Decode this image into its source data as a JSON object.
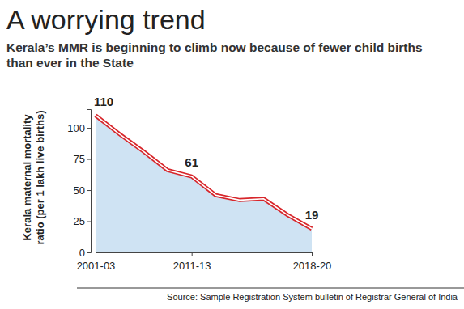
{
  "chart_data": {
    "type": "line",
    "title": "A worrying trend",
    "subtitle": "Kerala’s MMR is beginning to climb now because of fewer child births than ever in the State",
    "y_label": "Kerala maternal mortality ratio (per 1 lakh live births)",
    "source": "Source: Sample Registration System bulletin of Registrar General of India",
    "categories": [
      "2001-03",
      null,
      null,
      null,
      "2011-13",
      null,
      null,
      null,
      null,
      "2018-20"
    ],
    "values": [
      110,
      95,
      81,
      66,
      61,
      46,
      42,
      43,
      30,
      19
    ],
    "value_labels": [
      "110",
      null,
      null,
      null,
      "61",
      null,
      null,
      null,
      null,
      "19"
    ],
    "data_labels": true,
    "color": "#d7262b",
    "ylim": [
      0,
      115
    ],
    "yticks": [
      0,
      25,
      50,
      75,
      100
    ],
    "grid": false
  }
}
